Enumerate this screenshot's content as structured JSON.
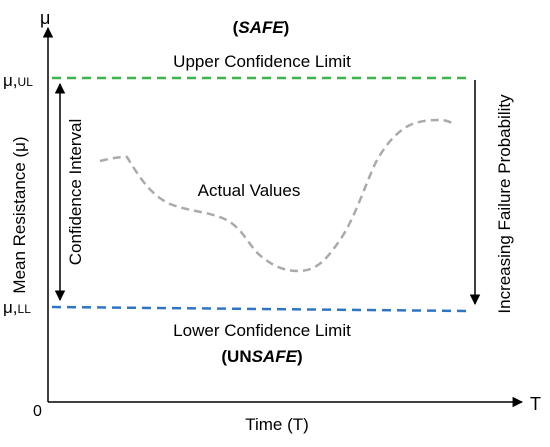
{
  "axes": {
    "y_symbol": "μ",
    "x_symbol": "T",
    "origin": "0",
    "ylabel": "Mean Resistance (μ)",
    "xlabel": "Time (T)"
  },
  "limits": {
    "upper_tick_main": "μ,",
    "upper_tick_sub": "UL",
    "lower_tick_main": "μ,",
    "lower_tick_sub": "LL",
    "upper_label": "Upper Confidence Limit",
    "lower_label": "Lower Confidence Limit",
    "upper_color": "#3cb44a",
    "lower_color": "#2e75c6"
  },
  "regions": {
    "safe_open": "(",
    "safe_word": "SAFE",
    "safe_close": ")",
    "unsafe_open": "(UN",
    "unsafe_word": "SAFE",
    "unsafe_close": ")"
  },
  "annotations": {
    "confidence_interval": "Confidence Interval",
    "increasing_failure": "Increasing Failure Probability",
    "actual_values": "Actual Values",
    "actual_color": "#aaaaaa"
  }
}
